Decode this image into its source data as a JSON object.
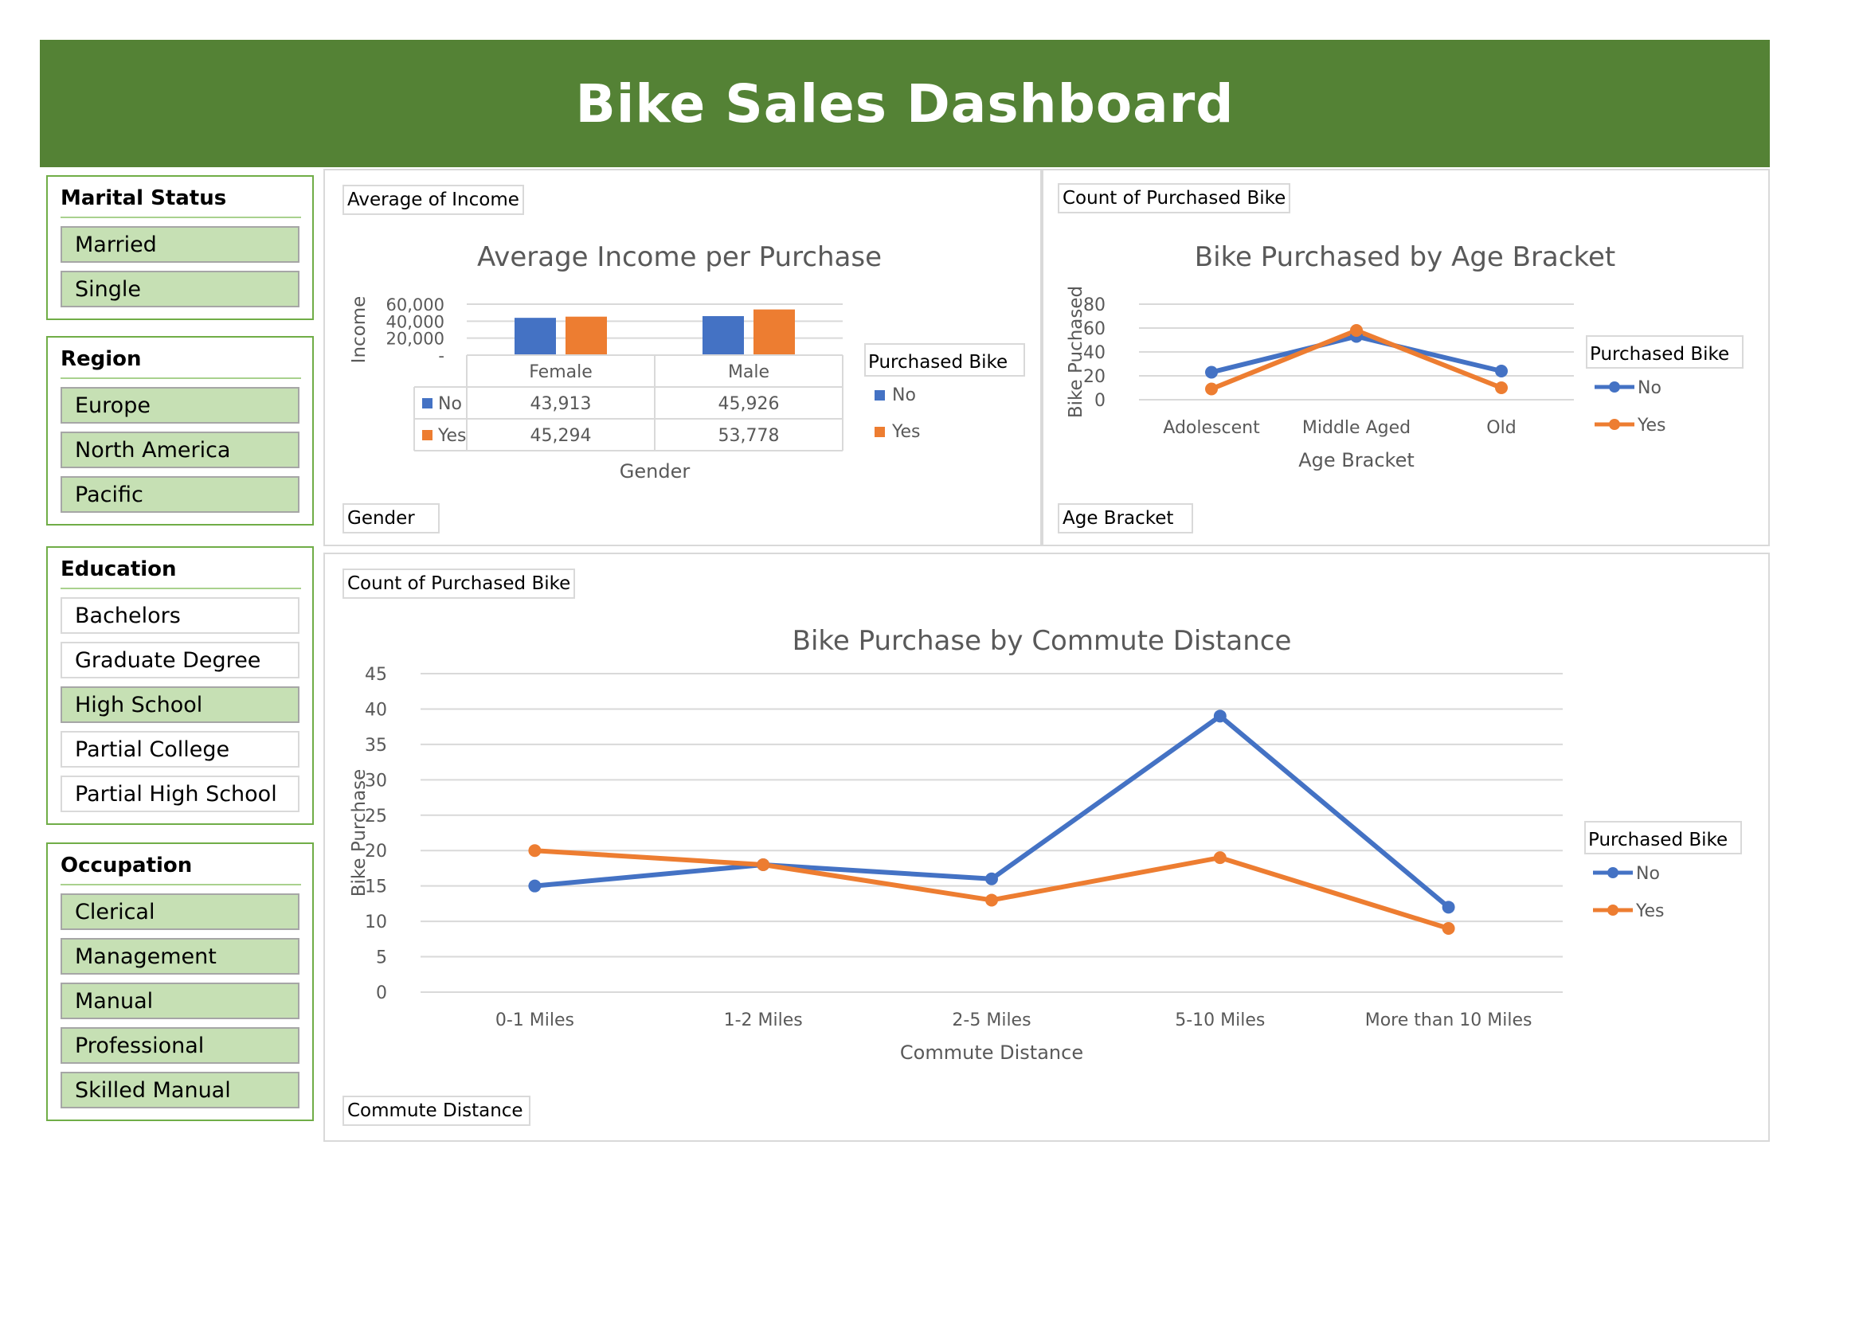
{
  "header": {
    "title": "Bike Sales Dashboard"
  },
  "colors": {
    "banner": "#548235",
    "no": "#4472c4",
    "yes": "#ed7d31",
    "slicer_selected": "#c6e0b4"
  },
  "slicers": {
    "marital_status": {
      "title": "Marital Status",
      "items": [
        {
          "label": "Married",
          "selected": true
        },
        {
          "label": "Single",
          "selected": true
        }
      ]
    },
    "region": {
      "title": "Region",
      "items": [
        {
          "label": "Europe",
          "selected": true
        },
        {
          "label": "North America",
          "selected": true
        },
        {
          "label": "Pacific",
          "selected": true
        }
      ]
    },
    "education": {
      "title": "Education",
      "items": [
        {
          "label": "Bachelors",
          "selected": false
        },
        {
          "label": "Graduate Degree",
          "selected": false
        },
        {
          "label": "High School",
          "selected": true
        },
        {
          "label": "Partial College",
          "selected": false
        },
        {
          "label": "Partial High School",
          "selected": false
        }
      ]
    },
    "occupation": {
      "title": "Occupation",
      "items": [
        {
          "label": "Clerical",
          "selected": true
        },
        {
          "label": "Management",
          "selected": true
        },
        {
          "label": "Manual",
          "selected": true
        },
        {
          "label": "Professional",
          "selected": true
        },
        {
          "label": "Skilled Manual",
          "selected": true
        }
      ]
    }
  },
  "income_panel": {
    "value_button": "Average of Income",
    "axis_button": "Gender"
  },
  "age_panel": {
    "value_button": "Count of Purchased Bike",
    "axis_button": "Age Bracket"
  },
  "commute_panel": {
    "value_button": "Count of Purchased Bike",
    "axis_button": "Commute Distance"
  },
  "chart_data": [
    {
      "type": "bar",
      "title": "Average Income per Purchase",
      "xlabel": "Gender",
      "ylabel": "Income",
      "categories": [
        "Female",
        "Male"
      ],
      "series": [
        {
          "name": "No",
          "values": [
            43913,
            45926
          ],
          "labels": [
            "43,913",
            "45,926"
          ]
        },
        {
          "name": "Yes",
          "values": [
            45294,
            53778
          ],
          "labels": [
            "45,294",
            "53,778"
          ]
        }
      ],
      "ylim": [
        0,
        60000
      ],
      "yticks": [
        "60,000",
        "40,000",
        "20,000",
        "-"
      ],
      "ytick_values": [
        60000,
        40000,
        20000,
        0
      ],
      "legend_title": "Purchased Bike",
      "legend_position": "right",
      "data_table": true
    },
    {
      "type": "line",
      "title": "Bike Purchased by Age Bracket",
      "xlabel": "Age Bracket",
      "ylabel": "Bike Puchased",
      "categories": [
        "Adolescent",
        "Middle Aged",
        "Old"
      ],
      "series": [
        {
          "name": "No",
          "values": [
            23,
            53,
            24
          ]
        },
        {
          "name": "Yes",
          "values": [
            9,
            58,
            10
          ]
        }
      ],
      "ylim": [
        0,
        80
      ],
      "yticks": [
        0,
        20,
        40,
        60,
        80
      ],
      "legend_title": "Purchased Bike",
      "legend_position": "right",
      "grid": true
    },
    {
      "type": "line",
      "title": "Bike Purchase by Commute Distance",
      "xlabel": "Commute Distance",
      "ylabel": "Bike Purchase",
      "categories": [
        "0-1 Miles",
        "1-2 Miles",
        "2-5 Miles",
        "5-10 Miles",
        "More than 10 Miles"
      ],
      "series": [
        {
          "name": "No",
          "values": [
            15,
            18,
            16,
            39,
            12
          ]
        },
        {
          "name": "Yes",
          "values": [
            20,
            18,
            13,
            19,
            9
          ]
        }
      ],
      "ylim": [
        0,
        45
      ],
      "yticks": [
        0,
        5,
        10,
        15,
        20,
        25,
        30,
        35,
        40,
        45
      ],
      "legend_title": "Purchased Bike",
      "legend_position": "right",
      "grid": true
    }
  ]
}
